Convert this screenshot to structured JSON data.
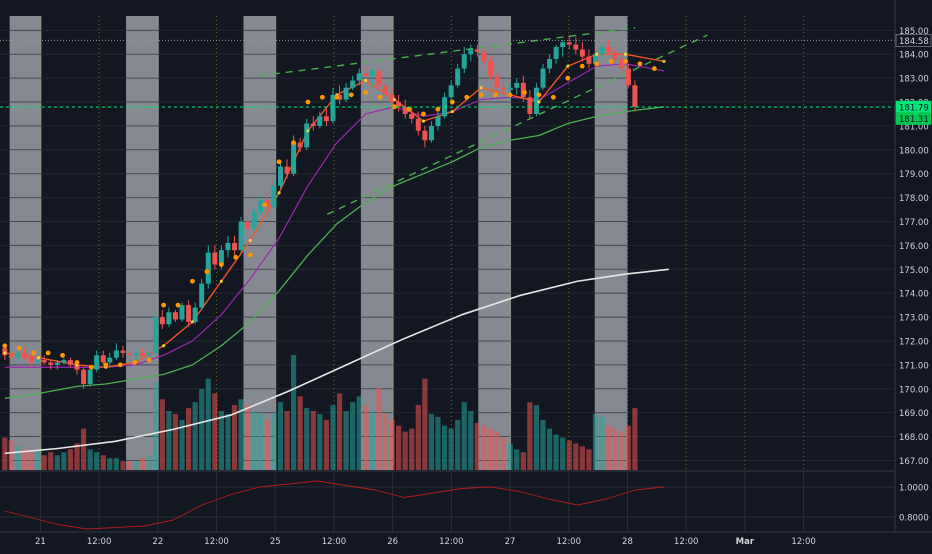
{
  "theme": {
    "background": "#131722",
    "session_shade": "#b2b5be",
    "grid": "#2a2e39",
    "axis_text": "#d1d4dc",
    "up": "#26a69a",
    "down": "#ef5350",
    "ema_fast": "#ff5722",
    "ema_mid": "#9c27b0",
    "ema_slow": "#4caf50",
    "sma_long": "#e6e6e6",
    "dots": "#ff9800",
    "channel": "#4caf50",
    "oscillator": "#b71c1c"
  },
  "chart_data": {
    "type": "candlestick",
    "symbol_interval": "hourly",
    "y_axis": {
      "range": [
        166.6,
        185.6
      ],
      "ticks": [
        "185.00",
        "184.00",
        "183.00",
        "182.00",
        "181.00",
        "180.00",
        "179.00",
        "178.00",
        "177.00",
        "176.00",
        "175.00",
        "174.00",
        "173.00",
        "172.00",
        "171.00",
        "170.00",
        "169.00",
        "168.00",
        "167.00"
      ]
    },
    "oscillator_axis": {
      "range": [
        0.7,
        1.1
      ],
      "ticks": [
        "1.0000",
        "0.8000"
      ]
    },
    "x_axis": {
      "range": [
        0,
        930
      ],
      "ticks": [
        {
          "t": 42,
          "label": "21"
        },
        {
          "t": 103,
          "label": "12:00"
        },
        {
          "t": 164,
          "label": "22"
        },
        {
          "t": 225,
          "label": "12:00"
        },
        {
          "t": 286,
          "label": "25"
        },
        {
          "t": 347,
          "label": "12:00"
        },
        {
          "t": 408,
          "label": "26"
        },
        {
          "t": 469,
          "label": "12:00"
        },
        {
          "t": 530,
          "label": "27"
        },
        {
          "t": 591,
          "label": "12:00"
        },
        {
          "t": 652,
          "label": "28"
        },
        {
          "t": 713,
          "label": "12:00"
        },
        {
          "t": 774,
          "label": "Mar"
        },
        {
          "t": 835,
          "label": "12:00"
        }
      ]
    },
    "sessions": [
      [
        10,
        43
      ],
      [
        131,
        165
      ],
      [
        253,
        287
      ],
      [
        375,
        409
      ],
      [
        497,
        531
      ],
      [
        618,
        652
      ]
    ],
    "price_labels": [
      {
        "price": 184.58,
        "label": "184.58",
        "color": "#131722",
        "text_color": "#d1d4dc",
        "line": "#9598a1",
        "dash": "1,2"
      },
      {
        "price": 181.79,
        "label": "181.79",
        "color": "#00e676",
        "text_color": "#131722",
        "line": "#00e676",
        "dash": "3,3"
      },
      {
        "price": 181.31,
        "label": "181.31",
        "color": "#00c853",
        "text_color": "#131722",
        "line": null,
        "dash": null
      }
    ],
    "candles": {
      "t_start": 5,
      "t_step": 6.82,
      "ohlc": [
        [
          171.7,
          171.8,
          171.2,
          171.4
        ],
        [
          171.4,
          171.6,
          171.1,
          171.3
        ],
        [
          171.3,
          171.6,
          171.1,
          171.5
        ],
        [
          171.5,
          171.7,
          171.2,
          171.3
        ],
        [
          171.3,
          171.5,
          170.9,
          171.1
        ],
        [
          171.1,
          171.3,
          170.9,
          171.2
        ],
        [
          171.2,
          171.4,
          171.0,
          171.1
        ],
        [
          171.1,
          171.2,
          170.8,
          171.0
        ],
        [
          171.0,
          171.2,
          170.8,
          171.1
        ],
        [
          171.1,
          171.3,
          171.0,
          171.2
        ],
        [
          171.2,
          171.3,
          170.9,
          171.0
        ],
        [
          171.0,
          171.1,
          170.6,
          170.8
        ],
        [
          170.8,
          170.9,
          170.0,
          170.2
        ],
        [
          170.2,
          170.9,
          170.1,
          170.8
        ],
        [
          170.8,
          171.6,
          170.7,
          171.4
        ],
        [
          171.4,
          171.6,
          171.0,
          171.1
        ],
        [
          171.1,
          171.5,
          170.9,
          171.3
        ],
        [
          171.3,
          171.9,
          171.2,
          171.6
        ],
        [
          171.6,
          171.8,
          171.3,
          171.5
        ],
        [
          171.5,
          171.7,
          171.2,
          171.4
        ],
        [
          171.4,
          171.6,
          171.2,
          171.5
        ],
        [
          171.5,
          171.7,
          171.3,
          171.4
        ],
        [
          171.4,
          171.6,
          171.2,
          171.5
        ],
        [
          171.5,
          173.2,
          171.4,
          173.0
        ],
        [
          173.0,
          173.3,
          172.5,
          172.7
        ],
        [
          172.7,
          173.4,
          172.6,
          173.2
        ],
        [
          173.2,
          173.3,
          172.8,
          172.9
        ],
        [
          172.9,
          173.6,
          172.8,
          173.5
        ],
        [
          173.5,
          173.7,
          172.6,
          172.8
        ],
        [
          172.8,
          173.6,
          172.7,
          173.4
        ],
        [
          173.4,
          174.6,
          173.3,
          174.4
        ],
        [
          174.4,
          176.0,
          174.2,
          175.7
        ],
        [
          175.7,
          176.0,
          175.0,
          175.2
        ],
        [
          175.2,
          176.0,
          175.0,
          175.8
        ],
        [
          175.8,
          176.4,
          175.5,
          176.1
        ],
        [
          176.1,
          176.4,
          175.6,
          175.8
        ],
        [
          175.8,
          177.2,
          175.7,
          177.0
        ],
        [
          177.0,
          177.4,
          176.5,
          176.7
        ],
        [
          176.7,
          177.6,
          176.6,
          177.4
        ],
        [
          177.4,
          178.1,
          177.3,
          177.9
        ],
        [
          177.9,
          178.2,
          177.4,
          177.6
        ],
        [
          177.6,
          178.8,
          177.5,
          178.5
        ],
        [
          178.5,
          179.5,
          178.4,
          179.3
        ],
        [
          179.3,
          179.6,
          178.8,
          179.0
        ],
        [
          179.0,
          180.6,
          178.9,
          180.3
        ],
        [
          180.3,
          180.5,
          179.9,
          180.1
        ],
        [
          180.1,
          181.3,
          180.0,
          181.1
        ],
        [
          181.1,
          181.4,
          180.8,
          181.0
        ],
        [
          181.0,
          181.6,
          180.9,
          181.4
        ],
        [
          181.4,
          181.7,
          181.0,
          181.2
        ],
        [
          181.2,
          182.6,
          181.1,
          182.3
        ],
        [
          182.3,
          182.7,
          181.9,
          182.1
        ],
        [
          182.1,
          182.8,
          182.0,
          182.6
        ],
        [
          182.6,
          183.1,
          182.5,
          182.9
        ],
        [
          182.9,
          183.4,
          182.7,
          183.2
        ],
        [
          183.2,
          183.5,
          182.8,
          183.1
        ],
        [
          183.1,
          183.4,
          182.7,
          183.3
        ],
        [
          183.3,
          183.4,
          182.6,
          182.7
        ],
        [
          182.7,
          182.9,
          182.1,
          182.3
        ],
        [
          182.3,
          182.6,
          181.8,
          182.0
        ],
        [
          182.0,
          182.3,
          181.6,
          181.8
        ],
        [
          181.8,
          182.1,
          181.3,
          181.5
        ],
        [
          181.5,
          181.8,
          181.1,
          181.3
        ],
        [
          181.3,
          181.6,
          180.6,
          180.8
        ],
        [
          180.8,
          181.0,
          180.1,
          180.4
        ],
        [
          180.4,
          181.2,
          180.3,
          181.0
        ],
        [
          181.0,
          181.6,
          180.8,
          181.4
        ],
        [
          181.4,
          182.4,
          181.3,
          182.2
        ],
        [
          182.2,
          182.9,
          182.0,
          182.7
        ],
        [
          182.7,
          183.6,
          182.6,
          183.4
        ],
        [
          183.4,
          184.3,
          183.2,
          184.0
        ],
        [
          184.0,
          184.4,
          183.7,
          184.2
        ],
        [
          184.2,
          184.4,
          183.9,
          184.1
        ],
        [
          184.1,
          184.3,
          183.5,
          183.7
        ],
        [
          183.7,
          183.9,
          182.9,
          183.1
        ],
        [
          183.1,
          183.3,
          182.4,
          182.6
        ],
        [
          182.6,
          182.9,
          182.3,
          182.5
        ],
        [
          182.5,
          182.8,
          182.1,
          182.6
        ],
        [
          182.6,
          183.0,
          182.3,
          182.8
        ],
        [
          182.8,
          183.1,
          182.0,
          182.2
        ],
        [
          182.2,
          182.5,
          181.3,
          181.5
        ],
        [
          181.5,
          182.8,
          181.4,
          182.6
        ],
        [
          182.6,
          183.6,
          182.5,
          183.4
        ],
        [
          183.4,
          184.0,
          183.2,
          183.8
        ],
        [
          183.8,
          184.4,
          183.6,
          184.3
        ],
        [
          184.3,
          184.6,
          183.9,
          184.5
        ],
        [
          184.5,
          184.8,
          184.2,
          184.4
        ],
        [
          184.4,
          184.7,
          184.0,
          184.2
        ],
        [
          184.2,
          184.5,
          183.7,
          183.9
        ],
        [
          183.9,
          184.2,
          183.4,
          183.6
        ],
        [
          183.6,
          184.2,
          183.5,
          184.0
        ],
        [
          184.0,
          184.4,
          183.8,
          184.3
        ],
        [
          184.3,
          184.6,
          184.0,
          184.1
        ],
        [
          184.1,
          184.3,
          183.6,
          183.8
        ],
        [
          183.8,
          184.0,
          183.2,
          183.4
        ],
        [
          183.4,
          183.6,
          182.6,
          182.7
        ],
        [
          182.7,
          182.9,
          181.6,
          181.8
        ]
      ],
      "volume": [
        22,
        20,
        16,
        14,
        12,
        14,
        10,
        12,
        10,
        12,
        14,
        18,
        28,
        14,
        12,
        10,
        8,
        8,
        6,
        6,
        6,
        8,
        10,
        60,
        48,
        40,
        38,
        34,
        42,
        46,
        55,
        62,
        52,
        40,
        38,
        44,
        48,
        44,
        40,
        38,
        34,
        38,
        46,
        40,
        78,
        50,
        42,
        40,
        38,
        34,
        44,
        52,
        40,
        46,
        50,
        44,
        40,
        56,
        38,
        34,
        30,
        26,
        28,
        44,
        62,
        38,
        36,
        30,
        28,
        34,
        46,
        40,
        32,
        30,
        28,
        26,
        22,
        18,
        14,
        12,
        46,
        44,
        34,
        28,
        24,
        22,
        20,
        18,
        16,
        14,
        38,
        36,
        30,
        28,
        26,
        30,
        42
      ]
    },
    "ema_fast": {
      "t": [
        5,
        40,
        80,
        110,
        140,
        170,
        200,
        230,
        260,
        290,
        320,
        350,
        380,
        410,
        440,
        470,
        500,
        530,
        560,
        590,
        620,
        650,
        690
      ],
      "v": [
        171.5,
        171.3,
        171.0,
        170.9,
        171.1,
        171.8,
        172.8,
        174.5,
        176.2,
        178.2,
        180.8,
        182.3,
        182.9,
        182.1,
        181.2,
        181.6,
        182.6,
        182.3,
        182.0,
        183.5,
        184.0,
        184.0,
        183.7
      ]
    },
    "ema_mid": {
      "t": [
        5,
        40,
        80,
        110,
        140,
        170,
        200,
        230,
        260,
        290,
        320,
        350,
        380,
        410,
        440,
        470,
        500,
        530,
        560,
        590,
        620,
        650,
        690
      ],
      "v": [
        170.9,
        170.9,
        170.9,
        170.9,
        171.0,
        171.4,
        172.0,
        173.1,
        174.6,
        176.3,
        178.5,
        180.3,
        181.5,
        181.8,
        181.4,
        181.6,
        182.1,
        182.2,
        182.1,
        182.8,
        183.5,
        183.6,
        183.3
      ]
    },
    "ema_slow": {
      "t": [
        5,
        40,
        80,
        110,
        140,
        170,
        200,
        230,
        260,
        290,
        320,
        350,
        380,
        410,
        440,
        470,
        500,
        530,
        560,
        590,
        620,
        650,
        690
      ],
      "v": [
        169.6,
        169.8,
        170.1,
        170.2,
        170.4,
        170.6,
        171.0,
        171.8,
        172.8,
        174.1,
        175.6,
        176.9,
        177.8,
        178.5,
        179.0,
        179.5,
        180.1,
        180.4,
        180.6,
        181.1,
        181.4,
        181.6,
        181.8
      ]
    },
    "sma_long": {
      "t": [
        5,
        60,
        120,
        180,
        240,
        300,
        360,
        420,
        480,
        540,
        600,
        650,
        695
      ],
      "v": [
        167.3,
        167.5,
        167.8,
        168.3,
        168.9,
        169.9,
        171.0,
        172.1,
        173.1,
        173.9,
        174.5,
        174.8,
        175.0
      ]
    },
    "dots": {
      "t": [
        5,
        20,
        35,
        50,
        65,
        80,
        95,
        110,
        125,
        140,
        155,
        170,
        185,
        200,
        215,
        230,
        245,
        260,
        275,
        290,
        305,
        320,
        335,
        350,
        365,
        380,
        395,
        410,
        425,
        440,
        455,
        470,
        485,
        500,
        515,
        530,
        545,
        560,
        575,
        590,
        605,
        620,
        635,
        650,
        665,
        680
      ],
      "v": [
        171.8,
        171.7,
        171.5,
        171.5,
        171.4,
        171.1,
        170.9,
        171.0,
        171.0,
        171.1,
        171.2,
        173.5,
        173.5,
        174.5,
        174.9,
        175.2,
        175.5,
        175.6,
        177.7,
        179.5,
        180.3,
        182.0,
        182.2,
        182.2,
        182.3,
        182.4,
        182.2,
        181.8,
        181.7,
        181.5,
        181.7,
        182.0,
        182.2,
        182.3,
        182.3,
        182.3,
        182.4,
        182.3,
        182.2,
        183.0,
        183.5,
        183.6,
        183.7,
        183.7,
        183.6,
        183.4
      ]
    },
    "channel_lines": [
      {
        "t1": 270,
        "v1": 183.1,
        "t2": 660,
        "v2": 185.1
      },
      {
        "t1": 340,
        "v1": 177.3,
        "t2": 735,
        "v2": 184.8
      }
    ],
    "oscillator": {
      "t": [
        5,
        30,
        60,
        90,
        120,
        150,
        180,
        210,
        240,
        270,
        300,
        330,
        360,
        390,
        420,
        450,
        480,
        510,
        540,
        570,
        600,
        630,
        660,
        690
      ],
      "v": [
        0.84,
        0.8,
        0.75,
        0.72,
        0.73,
        0.74,
        0.78,
        0.88,
        0.95,
        1.0,
        1.02,
        1.04,
        1.01,
        0.98,
        0.93,
        0.96,
        0.99,
        1.0,
        0.97,
        0.92,
        0.88,
        0.92,
        0.98,
        1.0
      ]
    }
  }
}
